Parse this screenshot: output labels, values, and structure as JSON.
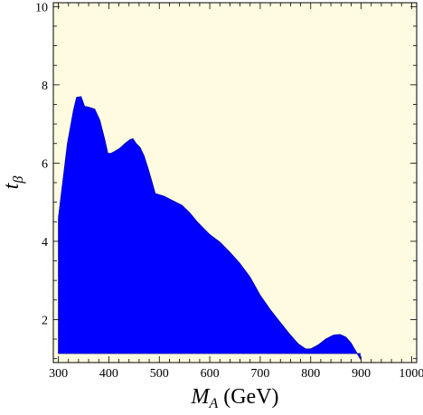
{
  "chart_data": {
    "type": "area",
    "title": "",
    "xlabel": "M_A (GeV)",
    "ylabel": "t_β",
    "xlim": [
      290,
      1010
    ],
    "ylim": [
      0.9,
      10.1
    ],
    "x_ticks": [
      300,
      400,
      500,
      600,
      700,
      800,
      900,
      1000
    ],
    "y_ticks": [
      2,
      4,
      6,
      8,
      10
    ],
    "grid": false,
    "legend": "none",
    "colors": {
      "background": "#fffbe0",
      "region_fill": "#0000ff",
      "frame": "#000000"
    },
    "series": [
      {
        "x": [
          300,
          318,
          330,
          336,
          345,
          352,
          360,
          372,
          382,
          392,
          398,
          404,
          412,
          422,
          432,
          442,
          448,
          454,
          462,
          470,
          478,
          486,
          492,
          498,
          510,
          525,
          545,
          560,
          575,
          590,
          600,
          620,
          640,
          660,
          680,
          700,
          720,
          740,
          760,
          775,
          790,
          800,
          815,
          830,
          845,
          858,
          870,
          880,
          890,
          898
        ],
        "y": [
          4.6,
          6.5,
          7.35,
          7.68,
          7.7,
          7.45,
          7.43,
          7.38,
          7.1,
          6.6,
          6.25,
          6.25,
          6.3,
          6.38,
          6.5,
          6.6,
          6.62,
          6.5,
          6.4,
          6.18,
          5.85,
          5.5,
          5.22,
          5.2,
          5.15,
          5.05,
          4.92,
          4.73,
          4.5,
          4.3,
          4.17,
          3.98,
          3.72,
          3.43,
          3.08,
          2.62,
          2.25,
          1.92,
          1.6,
          1.38,
          1.25,
          1.25,
          1.35,
          1.5,
          1.6,
          1.62,
          1.55,
          1.4,
          1.18,
          1.0
        ]
      }
    ]
  }
}
